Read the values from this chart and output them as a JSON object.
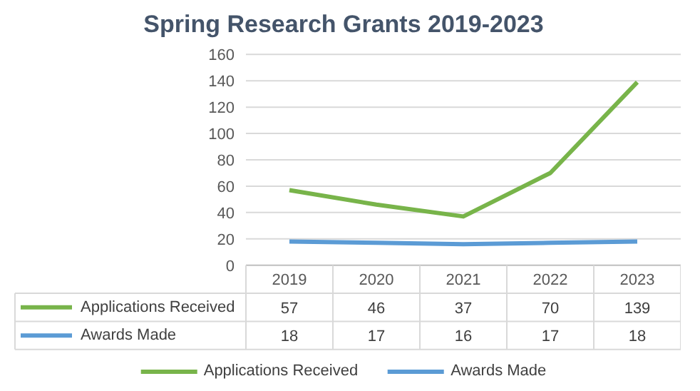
{
  "chart_data": {
    "type": "line",
    "title": "Spring Research Grants 2019-2023",
    "categories": [
      "2019",
      "2020",
      "2021",
      "2022",
      "2023"
    ],
    "series": [
      {
        "name": "Applications Received",
        "color": "#78b44a",
        "values": [
          57,
          46,
          37,
          70,
          139
        ]
      },
      {
        "name": "Awards Made",
        "color": "#5b9bd5",
        "values": [
          18,
          17,
          16,
          17,
          18
        ]
      }
    ],
    "ylim": [
      0,
      160
    ],
    "yticks": [
      0,
      20,
      40,
      60,
      80,
      100,
      120,
      140,
      160
    ],
    "grid": "y",
    "legend": "bottom",
    "data_labels": true,
    "marker": "none",
    "line_style": "solid"
  }
}
